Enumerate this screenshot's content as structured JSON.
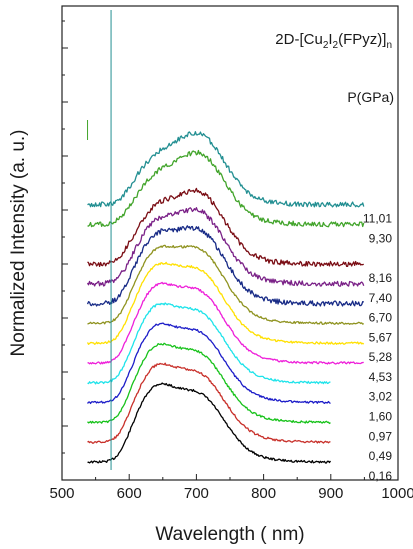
{
  "chart_data": {
    "type": "line",
    "title": "2D-[Cu2I2(FPyz)]n",
    "title_parts": [
      {
        "text": "2D-[Cu",
        "shift": "base"
      },
      {
        "text": "2",
        "shift": "sub"
      },
      {
        "text": "I",
        "shift": "base"
      },
      {
        "text": "2",
        "shift": "sub"
      },
      {
        "text": "(FPyz)]",
        "shift": "base"
      },
      {
        "text": "n",
        "shift": "sub"
      }
    ],
    "xlabel": "Wavelength ( nm)",
    "ylabel": "Normalized Intensity (a. u.)",
    "xlim": [
      500,
      1000
    ],
    "xticks": [
      500,
      600,
      700,
      800,
      900,
      1000
    ],
    "legend_title": "P(GPa)",
    "series": [
      {
        "name": "0,16",
        "color": "#000000",
        "offset": 0,
        "peak": 635,
        "x_end": 900
      },
      {
        "name": "0,49",
        "color": "#c8302a",
        "offset": 0.6,
        "peak": 636,
        "x_end": 900
      },
      {
        "name": "0,97",
        "color": "#17c21a",
        "offset": 1.2,
        "peak": 637,
        "x_end": 900
      },
      {
        "name": "1,60",
        "color": "#1c1cc8",
        "offset": 1.8,
        "peak": 638,
        "x_end": 900
      },
      {
        "name": "3,02",
        "color": "#1ee3ea",
        "offset": 2.4,
        "peak": 639,
        "x_end": 900
      },
      {
        "name": "4,53",
        "color": "#ee1fd9",
        "offset": 3.0,
        "peak": 641,
        "x_end": 950
      },
      {
        "name": "5,28",
        "color": "#ffe000",
        "offset": 3.6,
        "peak": 643,
        "x_end": 950
      },
      {
        "name": "5,67",
        "color": "#8f9320",
        "offset": 4.2,
        "peak": 652,
        "x_end": 950
      },
      {
        "name": "6,70",
        "color": "#172a86",
        "offset": 4.8,
        "peak": 660,
        "x_end": 950
      },
      {
        "name": "7,40",
        "color": "#7a2187",
        "offset": 5.4,
        "peak": 672,
        "x_end": 950
      },
      {
        "name": "8,16",
        "color": "#7a0d14",
        "offset": 6.0,
        "peak": 682,
        "x_end": 950
      },
      {
        "name": "9,30",
        "color": "#42a42b",
        "offset": 7.2,
        "peak": 700,
        "x_end": 950
      },
      {
        "name": "11,01",
        "color": "#238f92",
        "offset": 7.8,
        "peak": 702,
        "x_end": 950
      }
    ]
  }
}
